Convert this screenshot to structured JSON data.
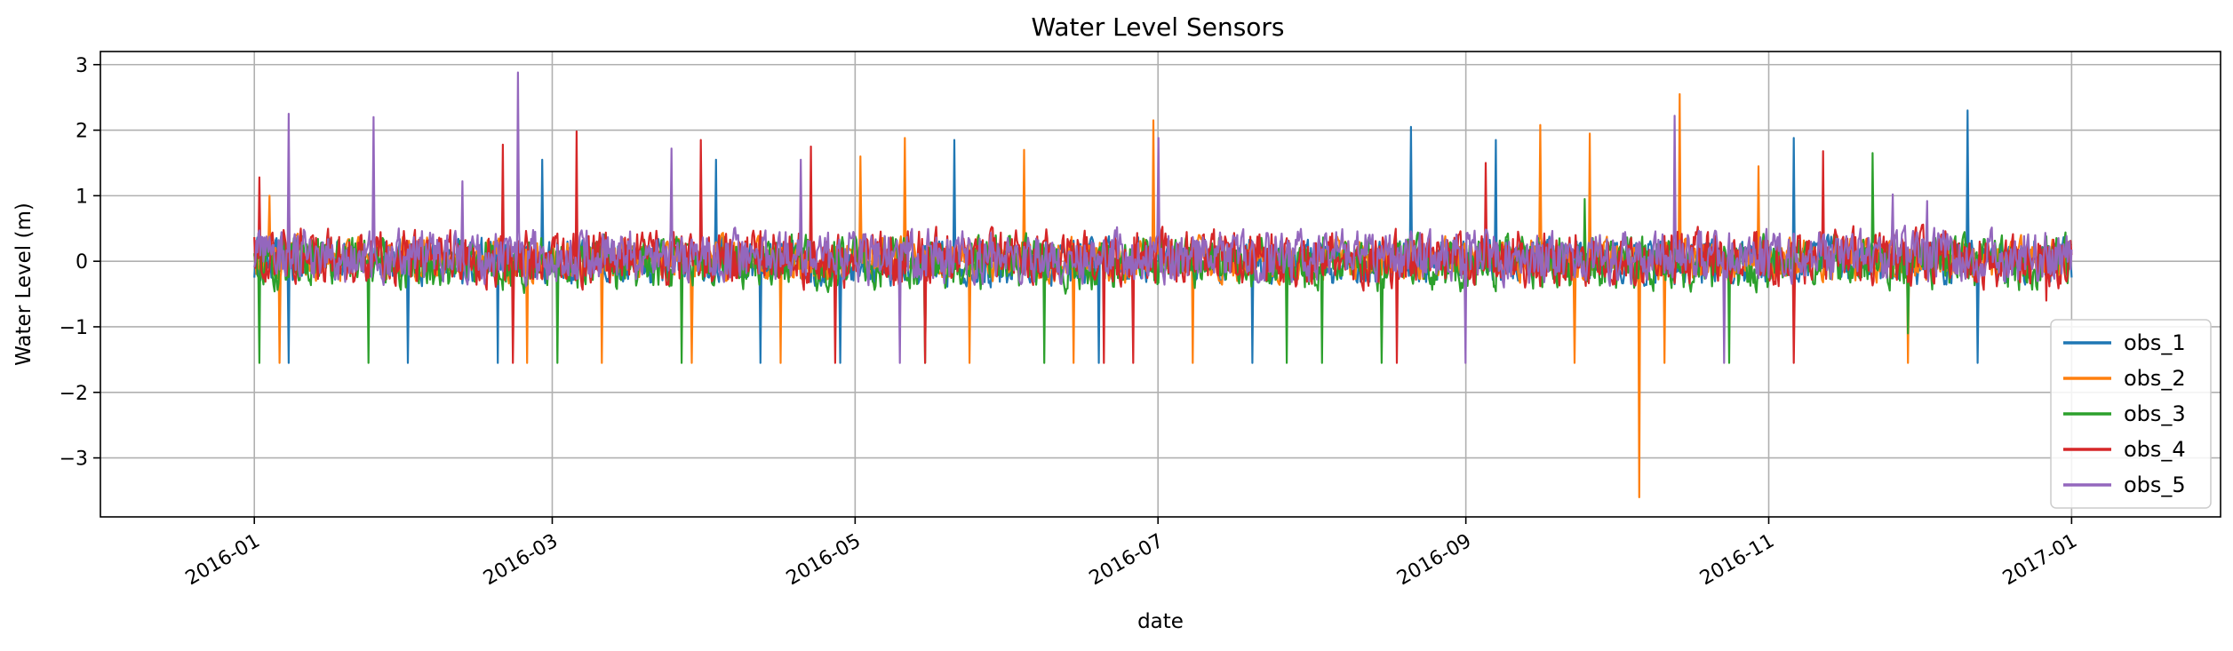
{
  "chart_data": {
    "type": "line",
    "title": "Water Level Sensors",
    "xlabel": "date",
    "ylabel": "Water Level (m)",
    "xlim": [
      "2015-12-01",
      "2017-01-31"
    ],
    "ylim": [
      -3.9,
      3.2
    ],
    "grid": true,
    "legend_position": "lower-right",
    "x_ticks": [
      {
        "date": "2016-01-01",
        "label": "2016-01"
      },
      {
        "date": "2016-03-01",
        "label": "2016-03"
      },
      {
        "date": "2016-05-01",
        "label": "2016-05"
      },
      {
        "date": "2016-07-01",
        "label": "2016-07"
      },
      {
        "date": "2016-09-01",
        "label": "2016-09"
      },
      {
        "date": "2016-11-01",
        "label": "2016-11"
      },
      {
        "date": "2017-01-01",
        "label": "2017-01"
      }
    ],
    "y_ticks": [
      {
        "value": 3,
        "label": "3"
      },
      {
        "value": 2,
        "label": "2"
      },
      {
        "value": 1,
        "label": "1"
      },
      {
        "value": 0,
        "label": "0"
      },
      {
        "value": -1,
        "label": "−1"
      },
      {
        "value": -2,
        "label": "−2"
      },
      {
        "value": -3,
        "label": "−3"
      }
    ],
    "x_range": {
      "start": "2016-01-01",
      "end": "2016-12-31",
      "frequency": "hourly"
    },
    "series": [
      {
        "name": "obs_1",
        "color": "#1f77b4",
        "typical_range": [
          -0.45,
          0.45
        ],
        "spikes": [
          {
            "date": "2016-01-08",
            "value": -1.55
          },
          {
            "date": "2016-02-01",
            "value": -1.55
          },
          {
            "date": "2016-02-19",
            "value": -1.55
          },
          {
            "date": "2016-02-28",
            "value": 1.55
          },
          {
            "date": "2016-04-03",
            "value": 1.55
          },
          {
            "date": "2016-04-12",
            "value": -1.55
          },
          {
            "date": "2016-04-28",
            "value": -1.55
          },
          {
            "date": "2016-05-21",
            "value": 1.85
          },
          {
            "date": "2016-06-19",
            "value": -1.55
          },
          {
            "date": "2016-07-20",
            "value": -1.55
          },
          {
            "date": "2016-08-21",
            "value": 2.05
          },
          {
            "date": "2016-09-07",
            "value": 1.85
          },
          {
            "date": "2016-11-06",
            "value": 1.88
          },
          {
            "date": "2016-12-11",
            "value": 2.3
          },
          {
            "date": "2016-12-13",
            "value": -1.55
          }
        ]
      },
      {
        "name": "obs_2",
        "color": "#ff7f0e",
        "typical_range": [
          -0.4,
          0.45
        ],
        "spikes": [
          {
            "date": "2016-01-04",
            "value": 1.0
          },
          {
            "date": "2016-01-06",
            "value": -1.55
          },
          {
            "date": "2016-02-25",
            "value": -1.55
          },
          {
            "date": "2016-03-11",
            "value": -1.55
          },
          {
            "date": "2016-03-29",
            "value": -1.55
          },
          {
            "date": "2016-04-16",
            "value": -1.55
          },
          {
            "date": "2016-05-02",
            "value": 1.6
          },
          {
            "date": "2016-05-11",
            "value": 1.88
          },
          {
            "date": "2016-05-24",
            "value": -1.55
          },
          {
            "date": "2016-06-04",
            "value": 1.7
          },
          {
            "date": "2016-06-14",
            "value": -1.55
          },
          {
            "date": "2016-06-30",
            "value": 2.15
          },
          {
            "date": "2016-07-08",
            "value": -1.55
          },
          {
            "date": "2016-09-16",
            "value": 2.08
          },
          {
            "date": "2016-09-23",
            "value": -1.55
          },
          {
            "date": "2016-09-26",
            "value": 1.95
          },
          {
            "date": "2016-10-06",
            "value": -3.6
          },
          {
            "date": "2016-10-11",
            "value": -1.55
          },
          {
            "date": "2016-10-14",
            "value": 2.55
          },
          {
            "date": "2016-10-30",
            "value": 1.45
          },
          {
            "date": "2016-11-29",
            "value": -1.55
          }
        ]
      },
      {
        "name": "obs_3",
        "color": "#2ca02c",
        "typical_range": [
          -0.55,
          0.5
        ],
        "spikes": [
          {
            "date": "2016-01-02",
            "value": -1.55
          },
          {
            "date": "2016-01-24",
            "value": -1.55
          },
          {
            "date": "2016-03-02",
            "value": -1.55
          },
          {
            "date": "2016-03-27",
            "value": -1.55
          },
          {
            "date": "2016-05-15",
            "value": -1.55
          },
          {
            "date": "2016-06-08",
            "value": -1.55
          },
          {
            "date": "2016-07-27",
            "value": -1.55
          },
          {
            "date": "2016-08-03",
            "value": -1.55
          },
          {
            "date": "2016-08-15",
            "value": -1.55
          },
          {
            "date": "2016-09-25",
            "value": 0.95
          },
          {
            "date": "2016-10-24",
            "value": -1.55
          },
          {
            "date": "2016-11-22",
            "value": 1.65
          },
          {
            "date": "2016-11-29",
            "value": -1.1
          }
        ]
      },
      {
        "name": "obs_4",
        "color": "#d62728",
        "typical_range": [
          -0.5,
          0.6
        ],
        "spikes": [
          {
            "date": "2016-01-02",
            "value": 1.28
          },
          {
            "date": "2016-01-08",
            "value": 1.25
          },
          {
            "date": "2016-02-20",
            "value": 1.78
          },
          {
            "date": "2016-02-22",
            "value": -1.55
          },
          {
            "date": "2016-03-06",
            "value": 1.98
          },
          {
            "date": "2016-03-31",
            "value": 1.85
          },
          {
            "date": "2016-04-22",
            "value": 1.75
          },
          {
            "date": "2016-04-27",
            "value": -1.55
          },
          {
            "date": "2016-05-15",
            "value": -1.55
          },
          {
            "date": "2016-06-20",
            "value": -1.55
          },
          {
            "date": "2016-06-26",
            "value": -1.55
          },
          {
            "date": "2016-08-18",
            "value": -1.55
          },
          {
            "date": "2016-09-05",
            "value": 1.5
          },
          {
            "date": "2016-11-06",
            "value": -1.55
          },
          {
            "date": "2016-11-12",
            "value": 1.68
          },
          {
            "date": "2016-12-27",
            "value": -0.6
          }
        ]
      },
      {
        "name": "obs_5",
        "color": "#9467bd",
        "typical_range": [
          -0.45,
          0.6
        ],
        "spikes": [
          {
            "date": "2016-01-08",
            "value": 2.25
          },
          {
            "date": "2016-01-25",
            "value": 2.2
          },
          {
            "date": "2016-02-12",
            "value": 1.22
          },
          {
            "date": "2016-02-23",
            "value": 2.88
          },
          {
            "date": "2016-03-25",
            "value": 1.72
          },
          {
            "date": "2016-04-20",
            "value": 1.55
          },
          {
            "date": "2016-05-10",
            "value": -1.55
          },
          {
            "date": "2016-07-01",
            "value": 1.88
          },
          {
            "date": "2016-09-01",
            "value": -1.55
          },
          {
            "date": "2016-10-13",
            "value": 2.22
          },
          {
            "date": "2016-10-23",
            "value": -1.55
          },
          {
            "date": "2016-11-26",
            "value": 1.02
          },
          {
            "date": "2016-12-03",
            "value": 0.92
          }
        ]
      }
    ]
  }
}
